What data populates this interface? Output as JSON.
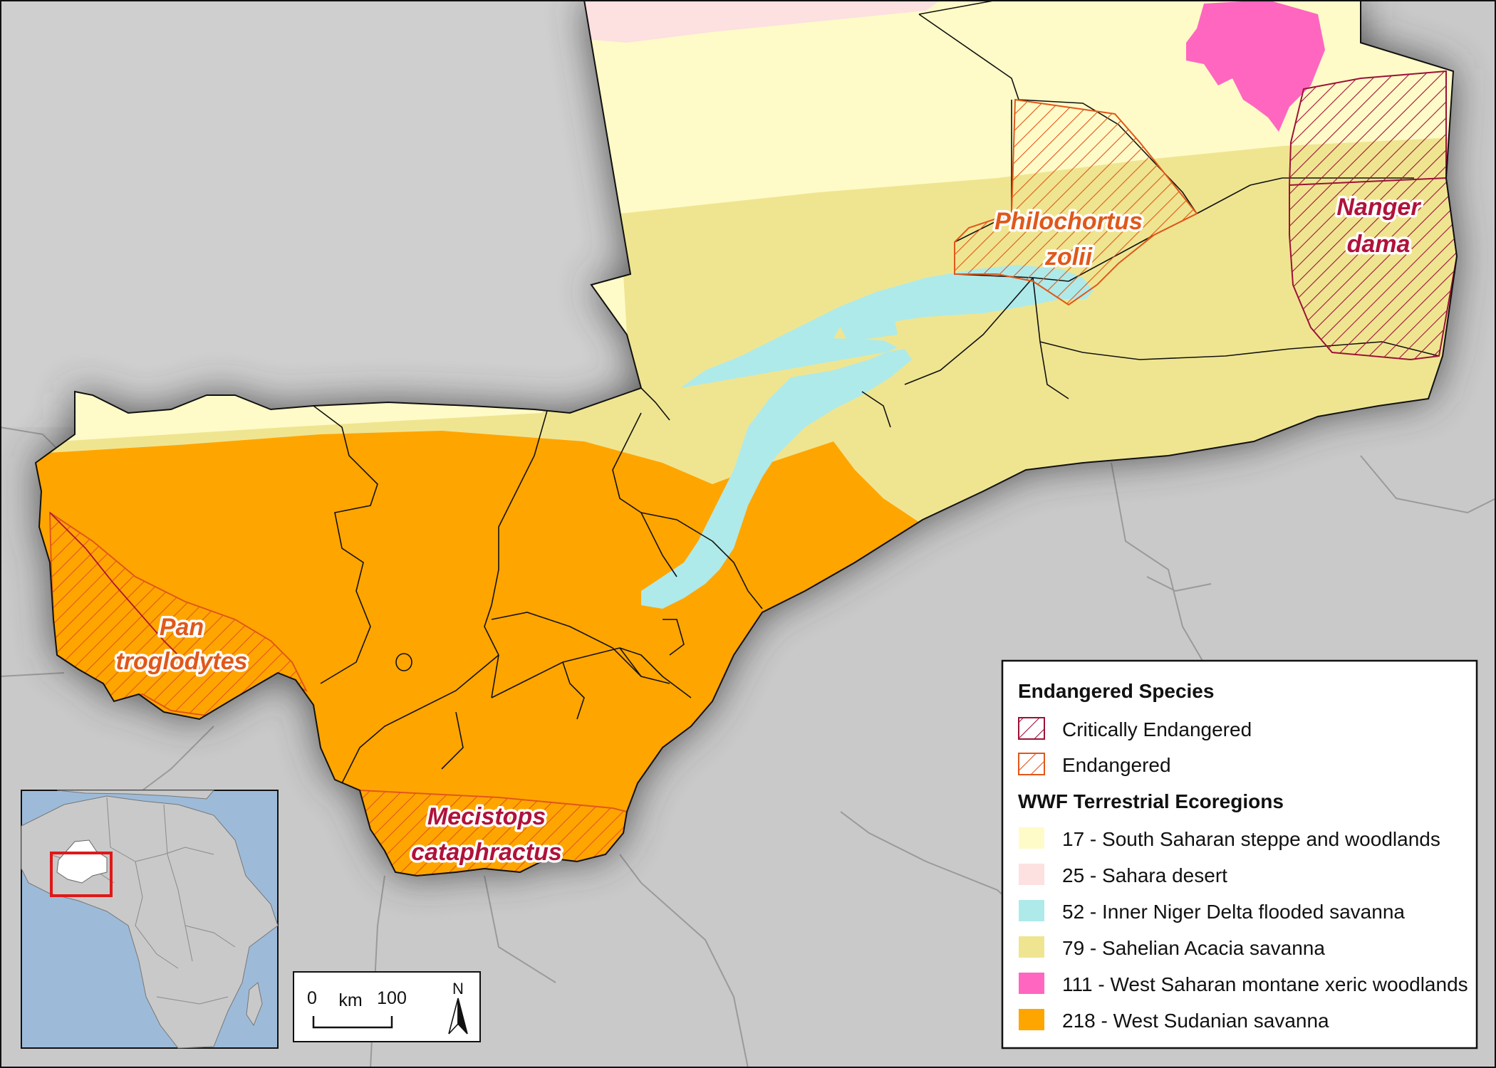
{
  "colors": {
    "south_saharan_steppe": "#fffbc8",
    "sahara_desert": "#fde0e0",
    "inner_niger_delta": "#aeeaea",
    "sahelian_acacia": "#efe591",
    "west_saharan_montane": "#ff66c0",
    "west_sudanian": "#ffa500",
    "critically_endangered": "#9c1237",
    "endangered": "#e0581a",
    "background_land": "#c9c9c9",
    "inset_ocean": "#9dbbd9"
  },
  "species": {
    "nanger_dama": [
      "Nanger",
      "dama"
    ],
    "philochortus_zolii": [
      "Philochortus",
      "zolii"
    ],
    "pan_troglodytes": [
      "Pan",
      "troglodytes"
    ],
    "mecistops_cataphractus": [
      "Mecistops",
      "cataphractus"
    ]
  },
  "legend": {
    "section_species": "Endangered Species",
    "items_species": [
      {
        "label": "Critically Endangered",
        "swatch": "hatch-ce"
      },
      {
        "label": "Endangered",
        "swatch": "hatch-en"
      }
    ],
    "section_ecoregions": "WWF Terrestrial Ecoregions",
    "items_ecoregions": [
      {
        "label": "17 - South Saharan steppe and woodlands",
        "color": "#fffbc8"
      },
      {
        "label": "25 - Sahara desert",
        "color": "#fde0e0"
      },
      {
        "label": "52 - Inner Niger Delta flooded savanna",
        "color": "#aeeaea"
      },
      {
        "label": "79 - Sahelian Acacia savanna",
        "color": "#efe591"
      },
      {
        "label": "111 - West Saharan montane xeric woodlands",
        "color": "#ff66c0"
      },
      {
        "label": "218 - West Sudanian savanna",
        "color": "#ffa500"
      }
    ]
  },
  "scalebar": {
    "start": "0",
    "unit": "km",
    "end": "100"
  },
  "north_arrow": {
    "label": "N",
    "icon": "north-arrow-icon"
  }
}
